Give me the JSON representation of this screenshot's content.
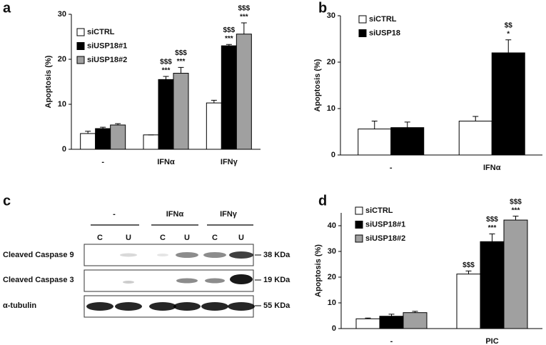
{
  "chart_data": [
    {
      "type": "bar",
      "panel": "a",
      "y_label": "Apoptosis (%)",
      "categories": [
        "-",
        "IFNα",
        "IFNγ"
      ],
      "ylim": [
        0,
        30
      ],
      "yticks": [
        0,
        10,
        20,
        30
      ],
      "series": [
        {
          "name": "siCTRL",
          "color": "#ffffff",
          "values": [
            3.5,
            3.2,
            10.3
          ],
          "errors": [
            0.5,
            0,
            0.6
          ],
          "annotations": [
            null,
            null,
            null
          ]
        },
        {
          "name": "siUSP18#1",
          "color": "#000000",
          "values": [
            4.6,
            15.5,
            23
          ],
          "errors": [
            0.3,
            0.7,
            0.3
          ],
          "annotations": [
            null,
            [
              "$$$",
              "***"
            ],
            [
              "$$$",
              "***"
            ]
          ]
        },
        {
          "name": "siUSP18#2",
          "color": "#a0a0a0",
          "values": [
            5.4,
            16.9,
            25.6
          ],
          "errors": [
            0.3,
            1.3,
            2.5
          ],
          "annotations": [
            null,
            [
              "$$$",
              "***"
            ],
            [
              "$$$",
              "***"
            ]
          ]
        }
      ]
    },
    {
      "type": "bar",
      "panel": "b",
      "y_label": "Apoptosis (%)",
      "categories": [
        "-",
        "IFNα"
      ],
      "ylim": [
        0,
        30
      ],
      "yticks": [
        0,
        10,
        20,
        30
      ],
      "series": [
        {
          "name": "siCTRL",
          "color": "#ffffff",
          "values": [
            5.6,
            7.3
          ],
          "errors": [
            1.7,
            1.0
          ],
          "annotations": [
            null,
            null
          ]
        },
        {
          "name": "siUSP18",
          "color": "#000000",
          "values": [
            5.9,
            22
          ],
          "errors": [
            1.2,
            2.8
          ],
          "annotations": [
            null,
            [
              "$$",
              "*"
            ]
          ]
        }
      ]
    },
    {
      "type": "bar",
      "panel": "d",
      "y_label": "Apoptosis (%)",
      "categories": [
        "-",
        "PIC"
      ],
      "ylim": [
        0,
        45
      ],
      "yticks": [
        0,
        10,
        20,
        30,
        40
      ],
      "series": [
        {
          "name": "siCTRL",
          "color": "#ffffff",
          "values": [
            3.8,
            21.2
          ],
          "errors": [
            0.3,
            1.2
          ],
          "annotations": [
            null,
            [
              "$$$"
            ]
          ]
        },
        {
          "name": "siUSP18#1",
          "color": "#000000",
          "values": [
            4.8,
            33.8
          ],
          "errors": [
            0.8,
            3
          ],
          "annotations": [
            null,
            [
              "$$$",
              "***"
            ]
          ]
        },
        {
          "name": "siUSP18#2",
          "color": "#a0a0a0",
          "values": [
            6.2,
            42.2
          ],
          "errors": [
            0.5,
            1.5
          ],
          "annotations": [
            null,
            [
              "$$$",
              "***"
            ]
          ]
        }
      ]
    }
  ],
  "blot": {
    "panel": "c",
    "groups": [
      "-",
      "IFNα",
      "IFNγ"
    ],
    "lanes": [
      "C",
      "U",
      "C",
      "U",
      "C",
      "U"
    ],
    "rows": [
      {
        "name": "Cleaved Caspase 9",
        "size": "38 KDa"
      },
      {
        "name": "Cleaved Caspase 3",
        "size": "19 KDa"
      },
      {
        "name": "α-tubulin",
        "size": "55 KDa"
      }
    ]
  }
}
